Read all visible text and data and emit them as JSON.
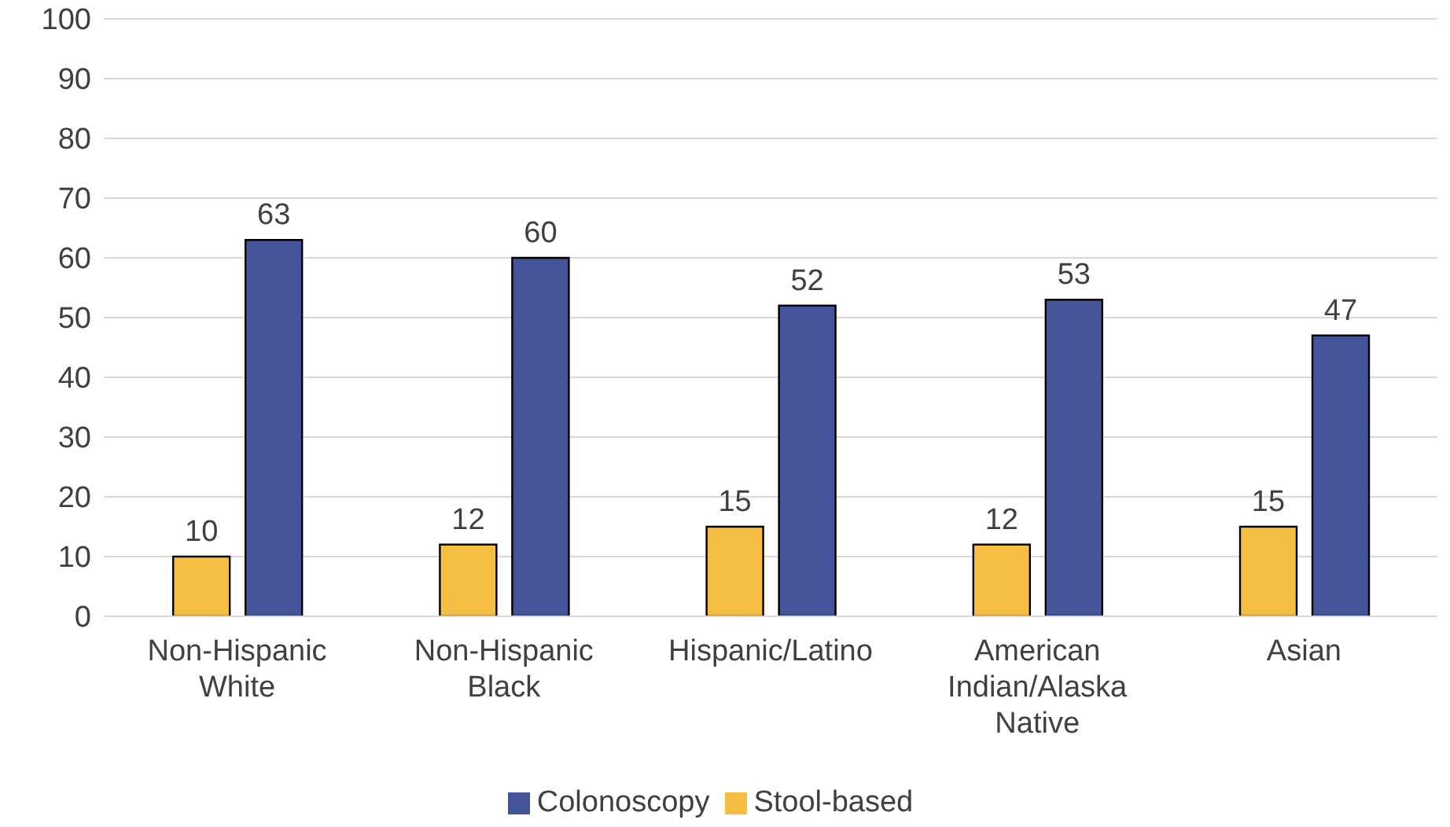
{
  "chart_data": {
    "type": "bar",
    "categories": [
      "Non-Hispanic White",
      "Non-Hispanic Black",
      "Hispanic/Latino",
      "American Indian/Alaska Native",
      "Asian"
    ],
    "series": [
      {
        "name": "Stool-based",
        "color": "#f5bd42",
        "values": [
          10,
          12,
          15,
          12,
          15
        ]
      },
      {
        "name": "Colonoscopy",
        "color": "#44549a",
        "values": [
          63,
          60,
          52,
          53,
          47
        ]
      }
    ],
    "ylim": [
      0,
      100
    ],
    "yticks": [
      0,
      10,
      20,
      30,
      40,
      50,
      60,
      70,
      80,
      90,
      100
    ],
    "grid": "y",
    "legend": "bottom",
    "data_labels": true
  }
}
